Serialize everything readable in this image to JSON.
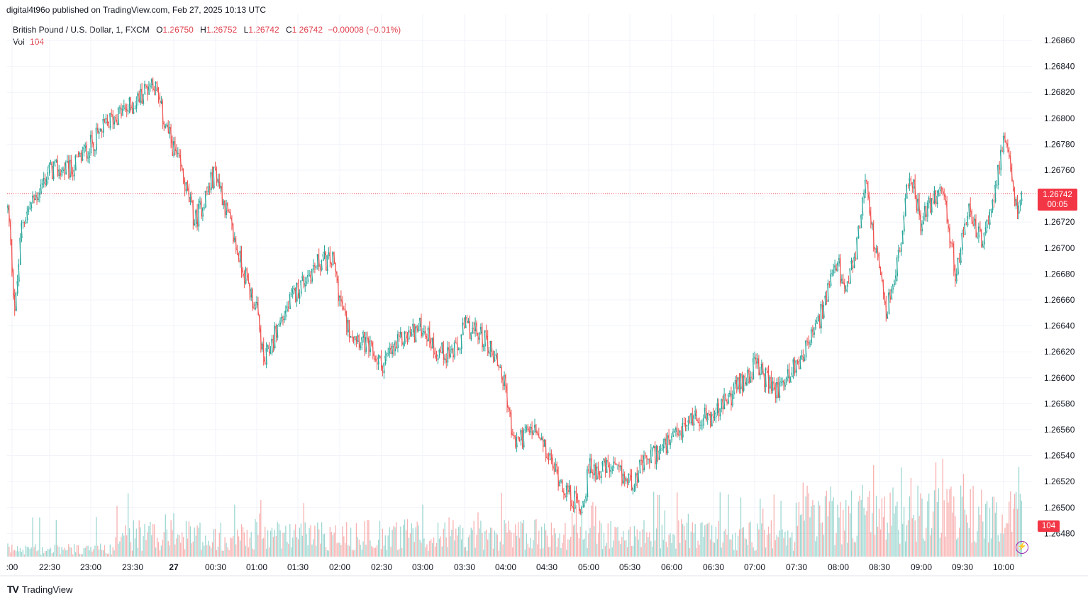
{
  "header": {
    "published": "digital4t96o published on TradingView.com, Feb 27, 2025 10:13 UTC"
  },
  "legend": {
    "symbol": "British Pound / U.S. Dollar, 1, FXCM",
    "o_label": "O",
    "o_value": "1.26750",
    "h_label": "H",
    "h_value": "1.26752",
    "l_label": "L",
    "l_value": "1.26742",
    "c_label": "C",
    "c_value": "1.26742",
    "change": "−0.00008 (−0.01%)",
    "vol_label": "Vol",
    "vol_value": "104"
  },
  "price_tag": {
    "price": "1.26742",
    "countdown": "00:05"
  },
  "volume_tag": "104",
  "footer": {
    "logo": "TV",
    "brand": "TradingView"
  },
  "colors": {
    "up": "#26a69a",
    "down": "#ef5350",
    "last_price_line": "#f23645",
    "grid": "#f0f3fa"
  },
  "chart_data": {
    "type": "candlestick",
    "interval": "1 minute",
    "y_ticks": [
      "1.26860",
      "1.26840",
      "1.26820",
      "1.26800",
      "1.26780",
      "1.26760",
      "1.26740",
      "1.26720",
      "1.26700",
      "1.26680",
      "1.26660",
      "1.26640",
      "1.26620",
      "1.26600",
      "1.26580",
      "1.26560",
      "1.26540",
      "1.26520",
      "1.26500",
      "1.26480"
    ],
    "x_ticks": [
      ":00",
      "22:30",
      "23:00",
      "23:30",
      "27",
      "00:30",
      "01:00",
      "01:30",
      "02:00",
      "02:30",
      "03:00",
      "03:30",
      "04:00",
      "04:30",
      "05:00",
      "05:30",
      "06:00",
      "06:30",
      "07:00",
      "07:30",
      "08:00",
      "08:30",
      "09:00",
      "09:30",
      "10:00"
    ],
    "ylim": [
      1.26475,
      1.26868
    ],
    "last_price": 1.26742,
    "trend": [
      [
        "22:00",
        1.2673
      ],
      [
        "22:05",
        1.2665
      ],
      [
        "22:10",
        1.2672
      ],
      [
        "22:20",
        1.2674
      ],
      [
        "22:30",
        1.2676
      ],
      [
        "22:45",
        1.2676
      ],
      [
        "23:00",
        1.2678
      ],
      [
        "23:15",
        1.268
      ],
      [
        "23:30",
        1.2681
      ],
      [
        "23:45",
        1.2683
      ],
      [
        "23:52",
        1.268
      ],
      [
        "00:05",
        1.2676
      ],
      [
        "00:15",
        1.2672
      ],
      [
        "00:30",
        1.2676
      ],
      [
        "00:45",
        1.267
      ],
      [
        "01:00",
        1.2665
      ],
      [
        "01:05",
        1.2661
      ],
      [
        "01:15",
        1.2664
      ],
      [
        "01:30",
        1.2667
      ],
      [
        "01:45",
        1.2669
      ],
      [
        "01:55",
        1.2669
      ],
      [
        "02:00",
        1.2666
      ],
      [
        "02:05",
        1.2664
      ],
      [
        "02:15",
        1.2663
      ],
      [
        "02:30",
        1.2661
      ],
      [
        "02:45",
        1.2663
      ],
      [
        "03:00",
        1.2664
      ],
      [
        "03:10",
        1.2662
      ],
      [
        "03:25",
        1.2662
      ],
      [
        "03:30",
        1.2664
      ],
      [
        "03:45",
        1.2663
      ],
      [
        "03:55",
        1.2661
      ],
      [
        "04:00",
        1.2659
      ],
      [
        "04:05",
        1.2655
      ],
      [
        "04:20",
        1.2656
      ],
      [
        "04:35",
        1.2653
      ],
      [
        "04:45",
        1.2651
      ],
      [
        "04:55",
        1.265
      ],
      [
        "05:00",
        1.2653
      ],
      [
        "05:15",
        1.2653
      ],
      [
        "05:30",
        1.2652
      ],
      [
        "05:45",
        1.2654
      ],
      [
        "06:00",
        1.2655
      ],
      [
        "06:15",
        1.2657
      ],
      [
        "06:30",
        1.2657
      ],
      [
        "06:45",
        1.2659
      ],
      [
        "07:00",
        1.2661
      ],
      [
        "07:15",
        1.2659
      ],
      [
        "07:30",
        1.2661
      ],
      [
        "07:45",
        1.2664
      ],
      [
        "08:00",
        1.2669
      ],
      [
        "08:05",
        1.2666
      ],
      [
        "08:15",
        1.2671
      ],
      [
        "08:20",
        1.2676
      ],
      [
        "08:25",
        1.2671
      ],
      [
        "08:35",
        1.2665
      ],
      [
        "08:45",
        1.267
      ],
      [
        "08:52",
        1.2676
      ],
      [
        "09:00",
        1.2672
      ],
      [
        "09:10",
        1.2674
      ],
      [
        "09:15",
        1.2675
      ],
      [
        "09:25",
        1.2668
      ],
      [
        "09:35",
        1.2673
      ],
      [
        "09:45",
        1.267
      ],
      [
        "09:52",
        1.2674
      ],
      [
        "10:00",
        1.2678
      ],
      [
        "10:05",
        1.2676
      ],
      [
        "10:08",
        1.2673
      ],
      [
        "10:13",
        1.26742
      ]
    ]
  }
}
